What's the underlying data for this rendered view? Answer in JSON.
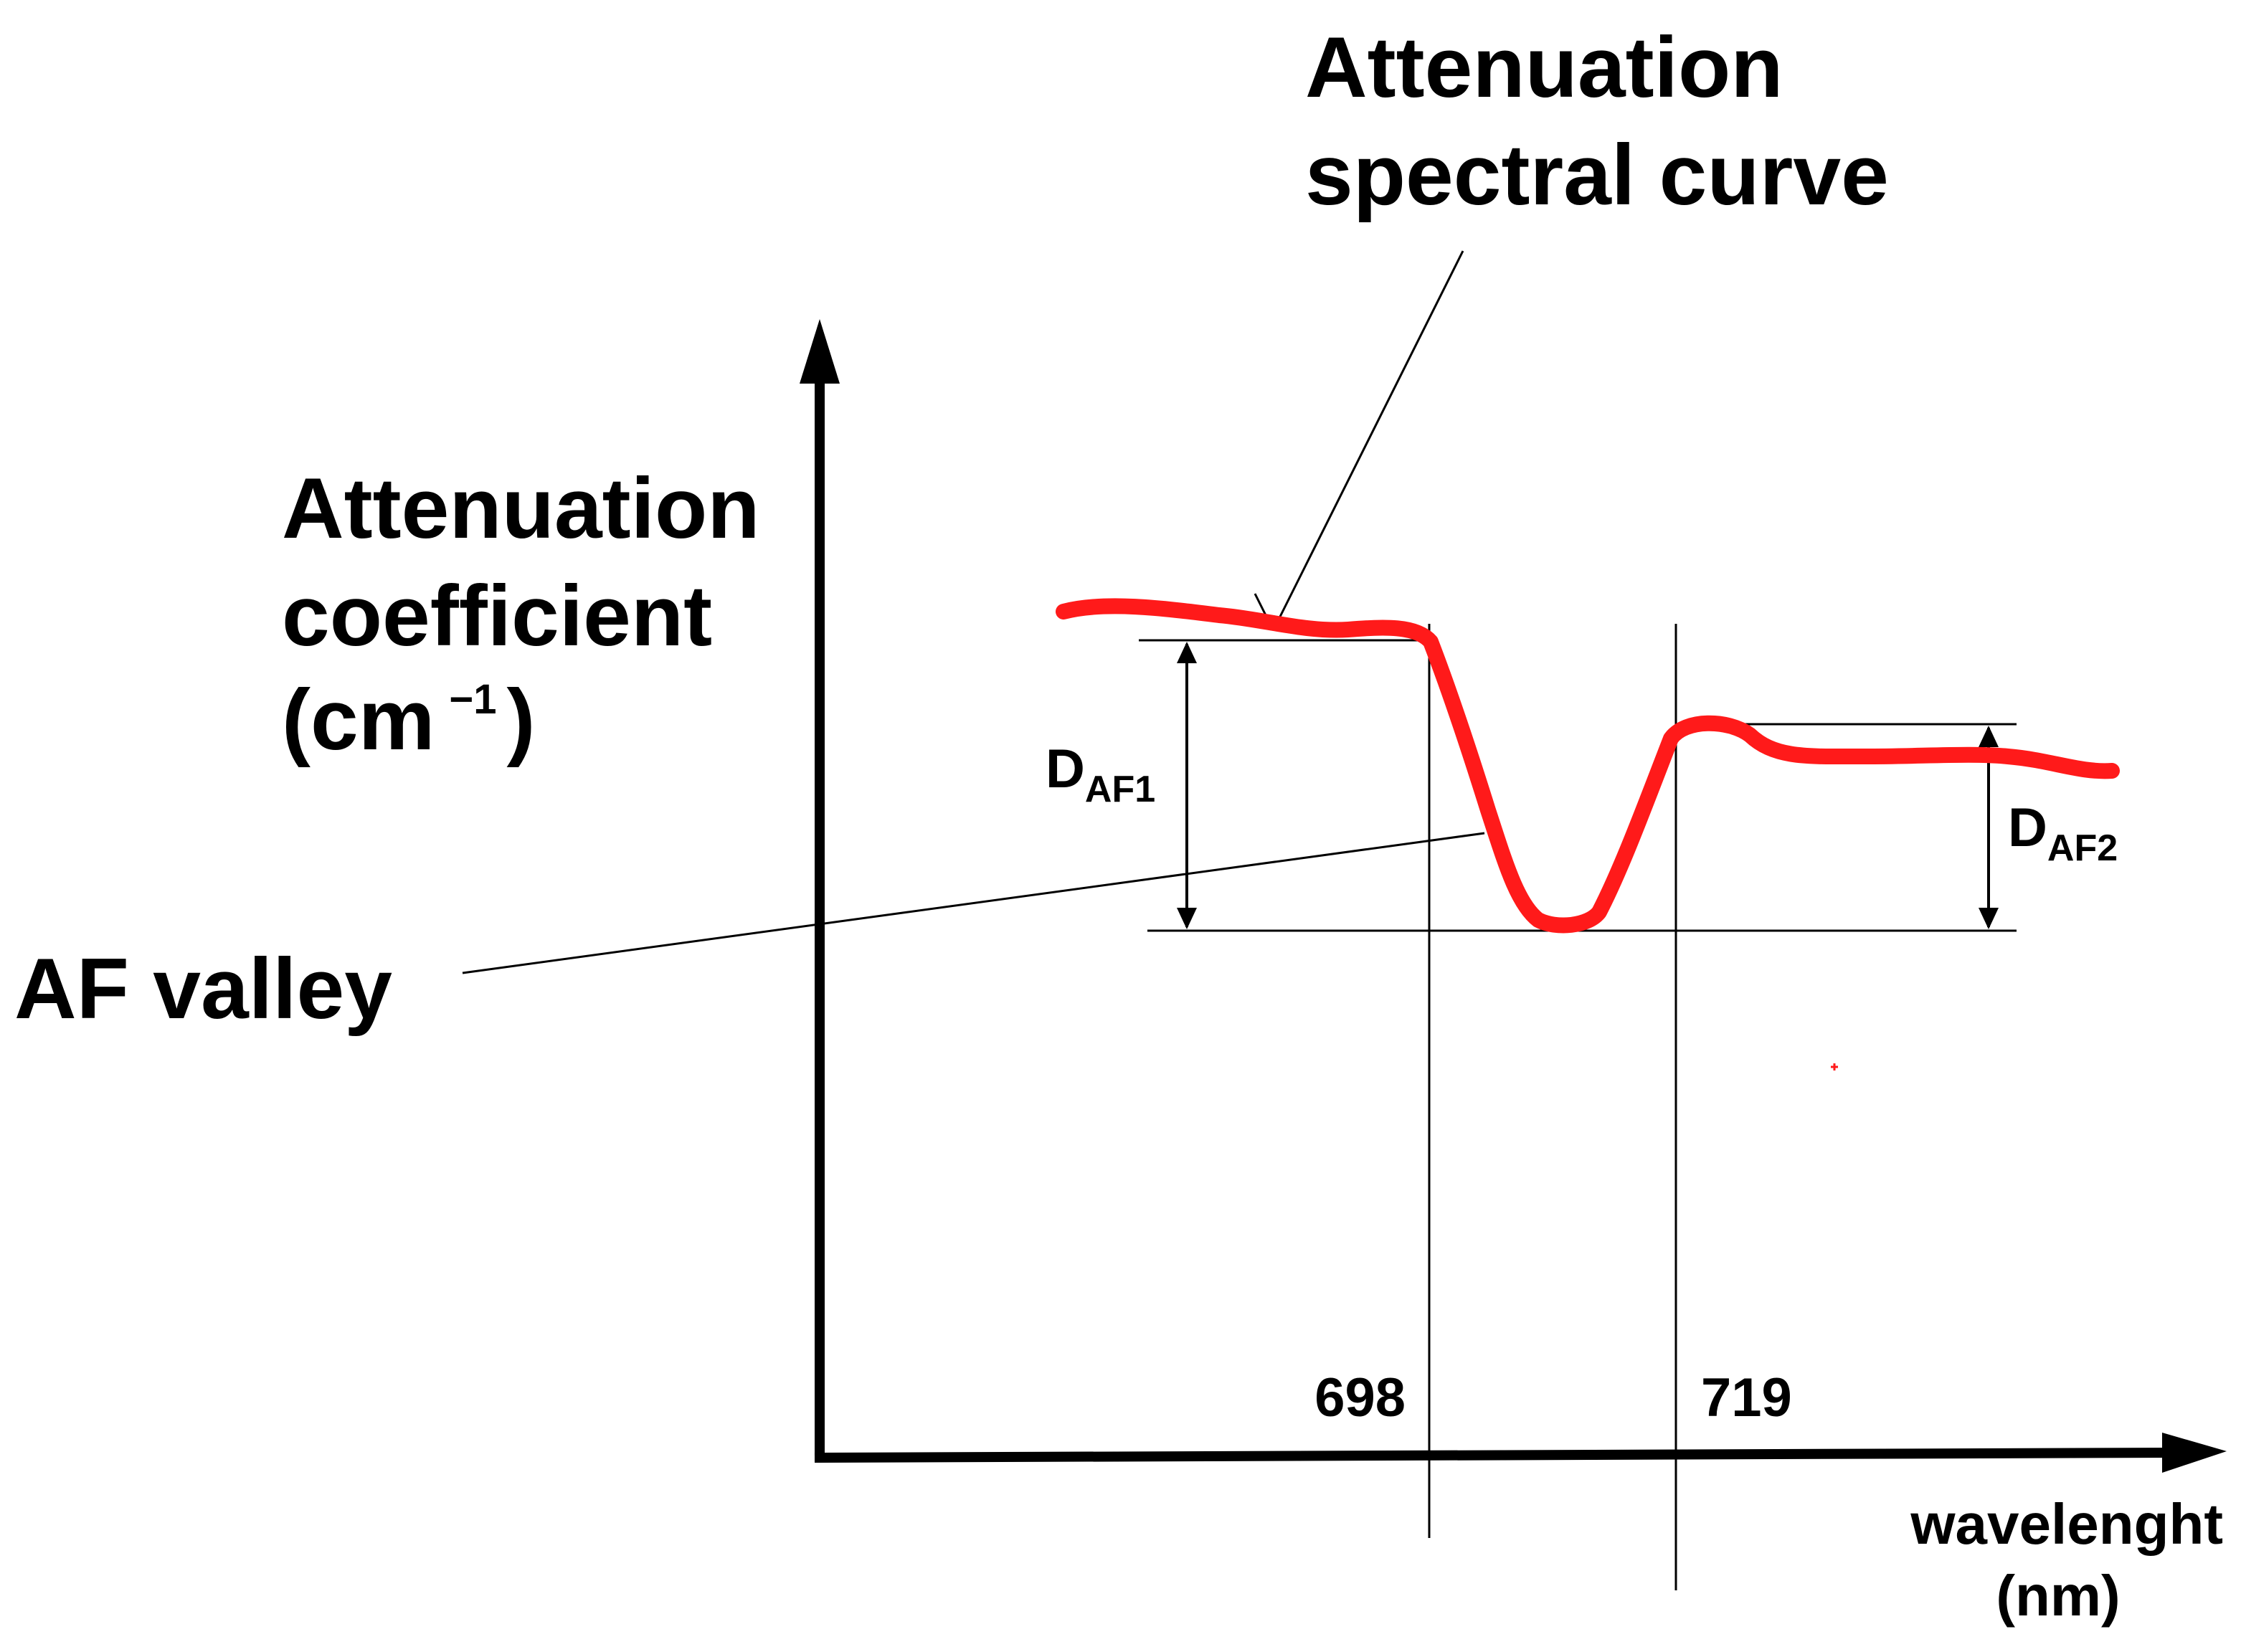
{
  "title": {
    "line1": "Attenuation",
    "line2": "spectral curve"
  },
  "y_axis_label": {
    "line1": "Attenuation",
    "line2": "coefficient",
    "line3_open": "(cm",
    "line3_sup": "−1",
    "line3_close": ")"
  },
  "x_axis_label": {
    "line1": "wavelenght",
    "line2": "(nm)"
  },
  "callout_valley": "AF valley",
  "markers": {
    "left": "698",
    "right": "719"
  },
  "depth_labels": {
    "d1_main": "D",
    "d1_sub": "AF1",
    "d2_main": "D",
    "d2_sub": "AF2"
  },
  "colors": {
    "curve": "#ff1a1a",
    "axes": "#000000"
  }
}
